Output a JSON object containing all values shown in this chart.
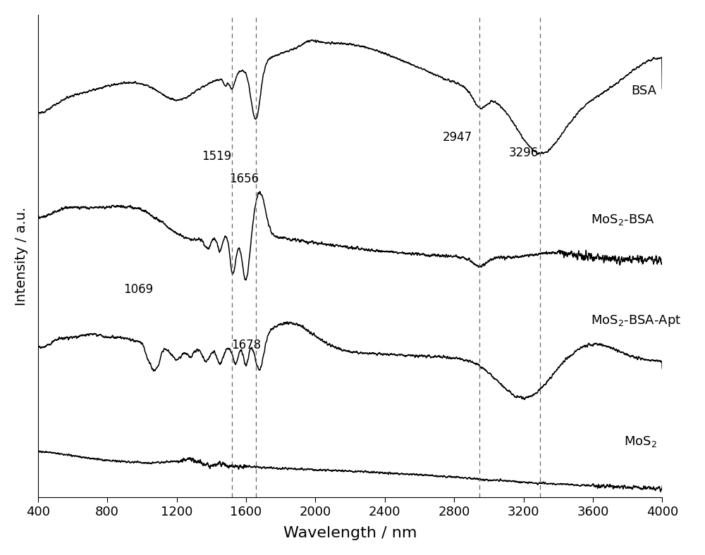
{
  "title": "",
  "xlabel": "Wavelength / nm",
  "ylabel": "Intensity / a.u.",
  "xlim": [
    400,
    4000
  ],
  "x_ticks": [
    400,
    800,
    1200,
    1600,
    2000,
    2400,
    2800,
    3200,
    3600,
    4000
  ],
  "dashed_lines": [
    1519,
    1656,
    2947,
    3296
  ],
  "background_color": "#ffffff",
  "line_color": "#000000",
  "dashed_color": "#666666",
  "offsets": [
    3.8,
    2.5,
    1.2,
    0.0
  ],
  "figsize": [
    10.0,
    7.88
  ],
  "dpi": 100
}
